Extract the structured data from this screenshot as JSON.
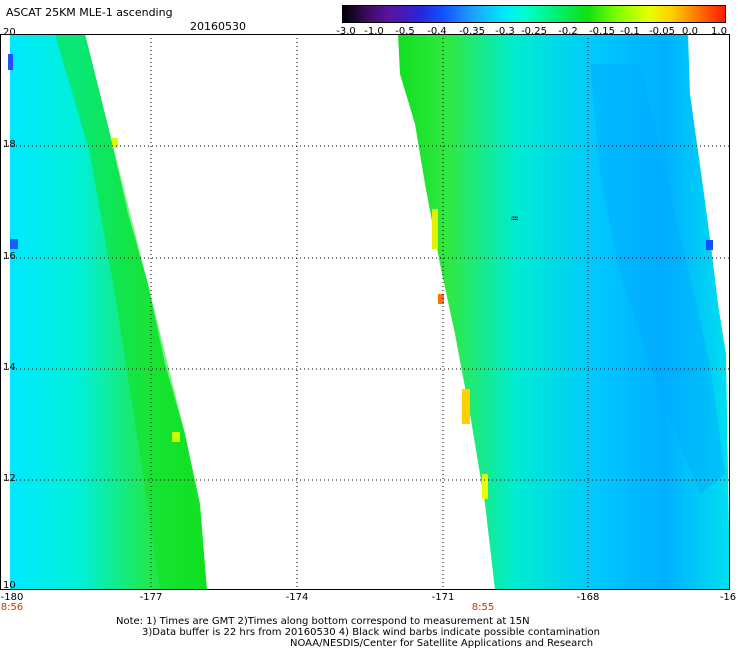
{
  "header": {
    "title": "ASCAT 25KM MLE-1 ascending",
    "date": "20160530"
  },
  "colorbar": {
    "ticks": [
      "-3.0",
      "-1.0",
      "-0.5",
      "-0.4",
      "-0.35",
      "-0.3",
      "-0.25",
      "-0.2",
      "-0.15",
      "-0.1",
      "-0.05",
      "0.0",
      "1.0"
    ]
  },
  "map": {
    "lat_labels": [
      "20",
      "18",
      "16",
      "14",
      "12",
      "10"
    ],
    "lon_labels": [
      "-180",
      "-177",
      "-174",
      "-171",
      "-168",
      "-16"
    ],
    "pass_times": [
      "8:56",
      "8:55"
    ],
    "colors": {
      "swath_base": "#00f0ff",
      "swath_green": "#10e040",
      "swath_blue": "#00b0ff",
      "edge_yellow": "#d8ff00",
      "edge_orange": "#ffb000",
      "grid": "#000000"
    }
  },
  "notes": {
    "line1": "Note: 1) Times are GMT 2)Times along bottom correspond to measurement at 15N",
    "line2": "3)Data buffer is 22 hrs from 20160530 4) Black wind barbs indicate possible contamination",
    "line3": "NOAA/NESDIS/Center for Satellite Applications and Research"
  }
}
